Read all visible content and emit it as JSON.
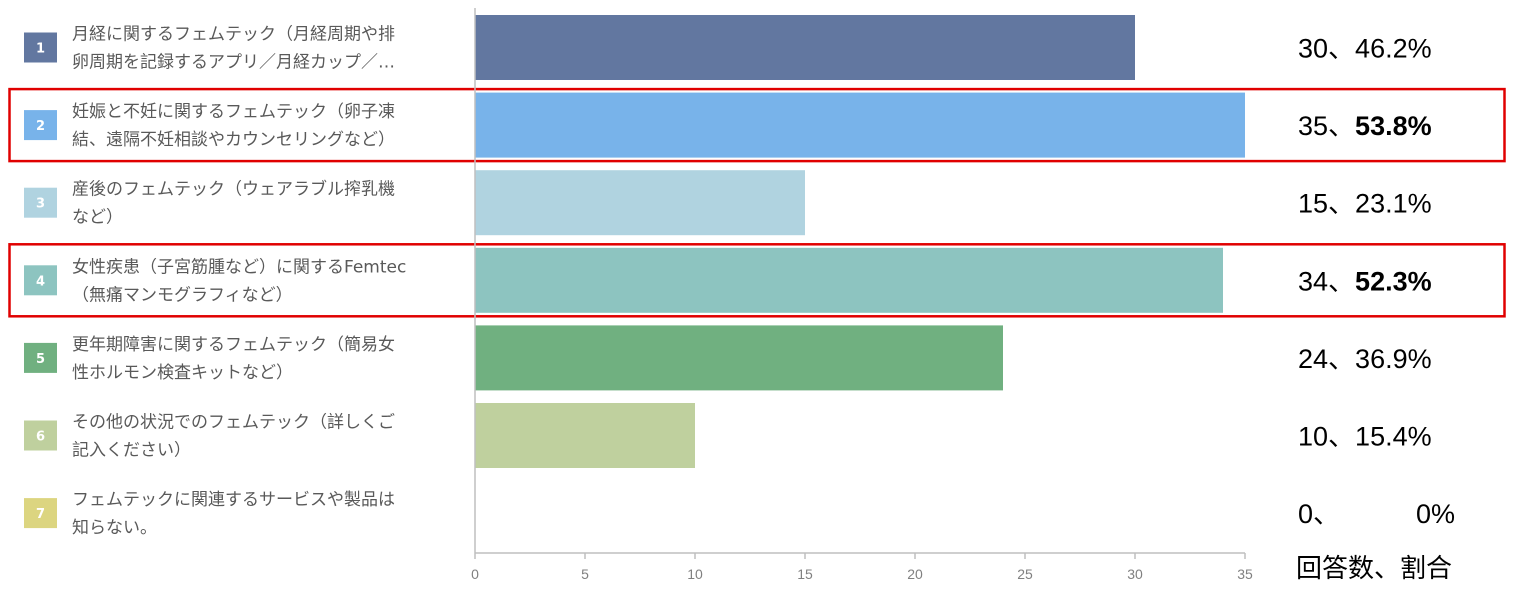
{
  "chart_data": {
    "type": "bar",
    "orientation": "horizontal",
    "xlim": [
      0,
      35
    ],
    "ticks": [
      0,
      5,
      10,
      15,
      20,
      25,
      30,
      35
    ],
    "axis_label": "回答数、割合",
    "categories": [
      {
        "number": "1",
        "line1": "月経に関するフェムテック（月経周期や排",
        "line2": "卵周期を記録するアプリ／月経カップ／…",
        "value": 30,
        "count_label": "30、",
        "percent": "46.2%",
        "color": "#6277a0",
        "highlight": false
      },
      {
        "number": "2",
        "line1": "妊娠と不妊に関するフェムテック（卵子凍",
        "line2": "結、遠隔不妊相談やカウンセリングなど）",
        "value": 35,
        "count_label": "35、",
        "percent": "53.8%",
        "color": "#78b3ea",
        "highlight": true
      },
      {
        "number": "3",
        "line1": "産後のフェムテック（ウェアラブル搾乳機",
        "line2": "など）",
        "value": 15,
        "count_label": "15、",
        "percent": "23.1%",
        "color": "#b0d3e0",
        "highlight": false
      },
      {
        "number": "4",
        "line1": "女性疾患（子宮筋腫など）に関するFemtec",
        "line2": "（無痛マンモグラフィなど）",
        "value": 34,
        "count_label": "34、",
        "percent": "52.3%",
        "color": "#8dc4c0",
        "highlight": true
      },
      {
        "number": "5",
        "line1": "更年期障害に関するフェムテック（簡易女",
        "line2": "性ホルモン検査キットなど）",
        "value": 24,
        "count_label": "24、",
        "percent": "36.9%",
        "color": "#70b080",
        "highlight": false
      },
      {
        "number": "6",
        "line1": "その他の状況でのフェムテック（詳しくご",
        "line2": "記入ください）",
        "value": 10,
        "count_label": "10、",
        "percent": "15.4%",
        "color": "#bfd09e",
        "highlight": false
      },
      {
        "number": "7",
        "line1": "フェムテックに関連するサービスや製品は",
        "line2": "知らない。",
        "value": 0,
        "count_label": "0、",
        "percent": "0%",
        "color": "#dcd580",
        "highlight": false
      }
    ],
    "highlight_color": "#e00000",
    "grid": false
  }
}
